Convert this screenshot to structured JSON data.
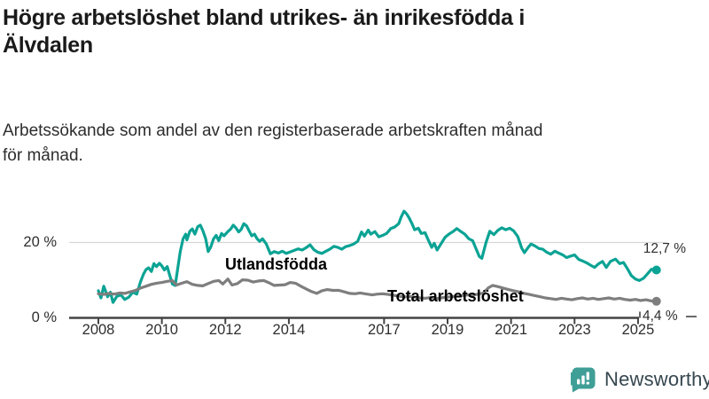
{
  "header": {
    "title_lines": [
      "Högre arbetslöshet bland utrikes- än inrikesfödda i",
      "Älvdalen"
    ],
    "subtitle_lines": [
      "Arbetssökande som andel av den registerbaserade arbetskraften månad",
      "för månad."
    ]
  },
  "footer": {
    "brand": "Newsworthy",
    "brand_color": "#3f9e96"
  },
  "chart_data": {
    "type": "line",
    "title": "Högre arbetslöshet bland utrikes- än inrikesfödda i Älvdalen",
    "subtitle": "Arbetssökande som andel av den registerbaserade arbetskraften månad för månad.",
    "unit": "%",
    "grid": "single horizontal gridline at 20 %",
    "legend_position": "inline labels on lines",
    "x_axis": {
      "ticks": [
        2008,
        2010,
        2012,
        2014,
        2017,
        2019,
        2021,
        2023,
        2025
      ],
      "range": [
        2008,
        2025.7
      ]
    },
    "y_axis": {
      "ticks": [
        {
          "value": 20,
          "label": "20 %"
        },
        {
          "value": 0,
          "label": "0 %"
        }
      ],
      "range": [
        0,
        30
      ],
      "gridlines": [
        20
      ]
    },
    "series": [
      {
        "name": "Utlandsfödda",
        "color": "#0ba394",
        "end_label": "12,7 %",
        "end_value": 12.7,
        "points": [
          [
            2008.0,
            7.2
          ],
          [
            2008.08,
            5.3
          ],
          [
            2008.17,
            8.4
          ],
          [
            2008.29,
            5.6
          ],
          [
            2008.38,
            6.8
          ],
          [
            2008.46,
            4.1
          ],
          [
            2008.58,
            5.7
          ],
          [
            2008.71,
            6.1
          ],
          [
            2008.83,
            4.9
          ],
          [
            2008.96,
            5.5
          ],
          [
            2009.08,
            6.8
          ],
          [
            2009.21,
            6.3
          ],
          [
            2009.33,
            9.6
          ],
          [
            2009.42,
            11.6
          ],
          [
            2009.5,
            12.8
          ],
          [
            2009.58,
            13.3
          ],
          [
            2009.67,
            12.3
          ],
          [
            2009.75,
            14.4
          ],
          [
            2009.83,
            13.6
          ],
          [
            2009.92,
            14.5
          ],
          [
            2010.0,
            13.8
          ],
          [
            2010.08,
            12.7
          ],
          [
            2010.17,
            13.6
          ],
          [
            2010.25,
            11.2
          ],
          [
            2010.33,
            9.0
          ],
          [
            2010.42,
            8.6
          ],
          [
            2010.5,
            13.2
          ],
          [
            2010.58,
            17.6
          ],
          [
            2010.67,
            21.0
          ],
          [
            2010.75,
            22.2
          ],
          [
            2010.79,
            20.7
          ],
          [
            2010.88,
            23.0
          ],
          [
            2010.96,
            23.6
          ],
          [
            2011.04,
            22.2
          ],
          [
            2011.13,
            24.2
          ],
          [
            2011.21,
            24.6
          ],
          [
            2011.29,
            23.2
          ],
          [
            2011.38,
            21.0
          ],
          [
            2011.46,
            17.6
          ],
          [
            2011.54,
            18.8
          ],
          [
            2011.63,
            21.0
          ],
          [
            2011.71,
            21.9
          ],
          [
            2011.79,
            20.5
          ],
          [
            2011.88,
            22.4
          ],
          [
            2011.96,
            21.8
          ],
          [
            2012.08,
            22.9
          ],
          [
            2012.17,
            23.6
          ],
          [
            2012.25,
            24.6
          ],
          [
            2012.33,
            23.9
          ],
          [
            2012.42,
            22.8
          ],
          [
            2012.5,
            23.5
          ],
          [
            2012.58,
            25.0
          ],
          [
            2012.67,
            24.4
          ],
          [
            2012.75,
            23.1
          ],
          [
            2012.83,
            21.8
          ],
          [
            2012.92,
            22.2
          ],
          [
            2013.0,
            21.0
          ],
          [
            2013.08,
            20.3
          ],
          [
            2013.17,
            21.0
          ],
          [
            2013.29,
            19.6
          ],
          [
            2013.42,
            17.0
          ],
          [
            2013.54,
            17.6
          ],
          [
            2013.67,
            17.2
          ],
          [
            2013.79,
            17.7
          ],
          [
            2013.92,
            17.1
          ],
          [
            2014.04,
            17.5
          ],
          [
            2014.17,
            17.9
          ],
          [
            2014.29,
            18.3
          ],
          [
            2014.42,
            18.0
          ],
          [
            2014.54,
            18.6
          ],
          [
            2014.67,
            19.4
          ],
          [
            2014.79,
            18.1
          ],
          [
            2014.92,
            17.4
          ],
          [
            2015.04,
            17.1
          ],
          [
            2015.17,
            17.7
          ],
          [
            2015.29,
            18.2
          ],
          [
            2015.42,
            19.0
          ],
          [
            2015.54,
            18.7
          ],
          [
            2015.67,
            18.2
          ],
          [
            2015.79,
            18.9
          ],
          [
            2015.92,
            19.2
          ],
          [
            2016.04,
            19.6
          ],
          [
            2016.17,
            20.3
          ],
          [
            2016.29,
            22.8
          ],
          [
            2016.38,
            21.7
          ],
          [
            2016.5,
            23.3
          ],
          [
            2016.58,
            22.2
          ],
          [
            2016.71,
            22.9
          ],
          [
            2016.83,
            21.5
          ],
          [
            2016.96,
            21.9
          ],
          [
            2017.08,
            22.4
          ],
          [
            2017.21,
            23.7
          ],
          [
            2017.33,
            24.1
          ],
          [
            2017.46,
            25.0
          ],
          [
            2017.54,
            26.8
          ],
          [
            2017.63,
            28.3
          ],
          [
            2017.71,
            27.6
          ],
          [
            2017.79,
            26.5
          ],
          [
            2017.88,
            25.0
          ],
          [
            2017.96,
            23.4
          ],
          [
            2018.08,
            23.8
          ],
          [
            2018.17,
            22.4
          ],
          [
            2018.29,
            22.6
          ],
          [
            2018.38,
            20.9
          ],
          [
            2018.5,
            18.7
          ],
          [
            2018.58,
            19.8
          ],
          [
            2018.67,
            18.0
          ],
          [
            2018.79,
            19.6
          ],
          [
            2018.92,
            21.4
          ],
          [
            2019.04,
            22.2
          ],
          [
            2019.17,
            22.9
          ],
          [
            2019.29,
            23.7
          ],
          [
            2019.42,
            22.9
          ],
          [
            2019.54,
            22.2
          ],
          [
            2019.67,
            21.0
          ],
          [
            2019.79,
            20.5
          ],
          [
            2019.88,
            18.7
          ],
          [
            2020.0,
            16.3
          ],
          [
            2020.08,
            15.8
          ],
          [
            2020.21,
            20.0
          ],
          [
            2020.33,
            23.0
          ],
          [
            2020.46,
            22.1
          ],
          [
            2020.58,
            23.2
          ],
          [
            2020.71,
            23.9
          ],
          [
            2020.83,
            23.4
          ],
          [
            2020.96,
            23.8
          ],
          [
            2021.08,
            23.1
          ],
          [
            2021.21,
            21.6
          ],
          [
            2021.33,
            18.6
          ],
          [
            2021.42,
            17.3
          ],
          [
            2021.54,
            18.7
          ],
          [
            2021.63,
            19.6
          ],
          [
            2021.75,
            19.1
          ],
          [
            2021.88,
            18.4
          ],
          [
            2022.0,
            18.2
          ],
          [
            2022.13,
            17.4
          ],
          [
            2022.25,
            16.9
          ],
          [
            2022.38,
            17.7
          ],
          [
            2022.5,
            17.2
          ],
          [
            2022.63,
            16.7
          ],
          [
            2022.75,
            16.0
          ],
          [
            2022.88,
            16.4
          ],
          [
            2023.0,
            16.7
          ],
          [
            2023.13,
            15.5
          ],
          [
            2023.25,
            15.1
          ],
          [
            2023.38,
            14.6
          ],
          [
            2023.5,
            14.0
          ],
          [
            2023.63,
            13.4
          ],
          [
            2023.75,
            14.3
          ],
          [
            2023.88,
            15.0
          ],
          [
            2024.0,
            13.4
          ],
          [
            2024.13,
            15.0
          ],
          [
            2024.29,
            15.6
          ],
          [
            2024.42,
            14.4
          ],
          [
            2024.54,
            14.7
          ],
          [
            2024.67,
            13.0
          ],
          [
            2024.79,
            11.2
          ],
          [
            2024.92,
            10.3
          ],
          [
            2025.04,
            9.9
          ],
          [
            2025.17,
            10.5
          ],
          [
            2025.29,
            11.6
          ],
          [
            2025.42,
            12.9
          ],
          [
            2025.58,
            12.7
          ]
        ]
      },
      {
        "name": "Total arbetslöshet",
        "color": "#7e7e7e",
        "end_label": "4,4 %",
        "end_value": 4.4,
        "points": [
          [
            2008.0,
            6.4
          ],
          [
            2008.17,
            6.2
          ],
          [
            2008.33,
            6.5
          ],
          [
            2008.5,
            6.3
          ],
          [
            2008.67,
            6.6
          ],
          [
            2008.83,
            6.5
          ],
          [
            2009.0,
            6.9
          ],
          [
            2009.17,
            7.3
          ],
          [
            2009.33,
            7.9
          ],
          [
            2009.5,
            8.4
          ],
          [
            2009.67,
            8.9
          ],
          [
            2009.83,
            9.2
          ],
          [
            2010.0,
            9.4
          ],
          [
            2010.17,
            9.7
          ],
          [
            2010.33,
            9.9
          ],
          [
            2010.46,
            8.7
          ],
          [
            2010.63,
            9.2
          ],
          [
            2010.79,
            9.6
          ],
          [
            2010.96,
            8.9
          ],
          [
            2011.13,
            8.6
          ],
          [
            2011.29,
            8.5
          ],
          [
            2011.46,
            9.1
          ],
          [
            2011.63,
            9.7
          ],
          [
            2011.79,
            9.9
          ],
          [
            2011.92,
            9.0
          ],
          [
            2012.08,
            10.3
          ],
          [
            2012.21,
            8.7
          ],
          [
            2012.38,
            9.1
          ],
          [
            2012.54,
            10.1
          ],
          [
            2012.71,
            10.0
          ],
          [
            2012.88,
            9.5
          ],
          [
            2013.04,
            9.8
          ],
          [
            2013.21,
            9.9
          ],
          [
            2013.38,
            9.3
          ],
          [
            2013.54,
            8.6
          ],
          [
            2013.71,
            8.7
          ],
          [
            2013.88,
            8.8
          ],
          [
            2014.04,
            9.4
          ],
          [
            2014.21,
            9.2
          ],
          [
            2014.38,
            8.4
          ],
          [
            2014.54,
            7.7
          ],
          [
            2014.71,
            7.0
          ],
          [
            2014.88,
            6.5
          ],
          [
            2015.04,
            7.2
          ],
          [
            2015.21,
            7.5
          ],
          [
            2015.38,
            7.3
          ],
          [
            2015.58,
            7.3
          ],
          [
            2015.75,
            6.9
          ],
          [
            2015.92,
            6.5
          ],
          [
            2016.08,
            6.4
          ],
          [
            2016.25,
            6.6
          ],
          [
            2016.46,
            6.3
          ],
          [
            2016.63,
            6.1
          ],
          [
            2016.79,
            6.3
          ],
          [
            2016.96,
            6.4
          ],
          [
            2017.13,
            6.2
          ],
          [
            2017.29,
            6.0
          ],
          [
            2017.46,
            5.8
          ],
          [
            2017.63,
            5.5
          ],
          [
            2017.79,
            5.7
          ],
          [
            2017.96,
            5.5
          ],
          [
            2018.13,
            5.3
          ],
          [
            2018.29,
            5.2
          ],
          [
            2018.46,
            5.4
          ],
          [
            2018.63,
            5.1
          ],
          [
            2018.79,
            5.3
          ],
          [
            2018.96,
            5.5
          ],
          [
            2019.13,
            5.6
          ],
          [
            2019.29,
            5.8
          ],
          [
            2019.46,
            5.9
          ],
          [
            2019.63,
            6.1
          ],
          [
            2019.79,
            6.0
          ],
          [
            2019.96,
            6.3
          ],
          [
            2020.13,
            6.6
          ],
          [
            2020.29,
            8.0
          ],
          [
            2020.42,
            8.6
          ],
          [
            2020.58,
            8.3
          ],
          [
            2020.75,
            7.9
          ],
          [
            2020.92,
            7.5
          ],
          [
            2021.08,
            7.2
          ],
          [
            2021.25,
            6.9
          ],
          [
            2021.42,
            6.5
          ],
          [
            2021.58,
            6.2
          ],
          [
            2021.75,
            5.9
          ],
          [
            2021.92,
            5.6
          ],
          [
            2022.08,
            5.3
          ],
          [
            2022.25,
            5.1
          ],
          [
            2022.42,
            4.9
          ],
          [
            2022.58,
            5.2
          ],
          [
            2022.75,
            5.0
          ],
          [
            2022.92,
            4.8
          ],
          [
            2023.08,
            5.1
          ],
          [
            2023.25,
            5.3
          ],
          [
            2023.42,
            5.0
          ],
          [
            2023.58,
            5.2
          ],
          [
            2023.75,
            4.9
          ],
          [
            2023.92,
            5.1
          ],
          [
            2024.08,
            5.3
          ],
          [
            2024.25,
            5.0
          ],
          [
            2024.42,
            5.2
          ],
          [
            2024.58,
            4.9
          ],
          [
            2024.75,
            4.7
          ],
          [
            2024.92,
            4.9
          ],
          [
            2025.08,
            4.6
          ],
          [
            2025.25,
            4.8
          ],
          [
            2025.42,
            4.5
          ],
          [
            2025.58,
            4.4
          ]
        ]
      }
    ]
  }
}
